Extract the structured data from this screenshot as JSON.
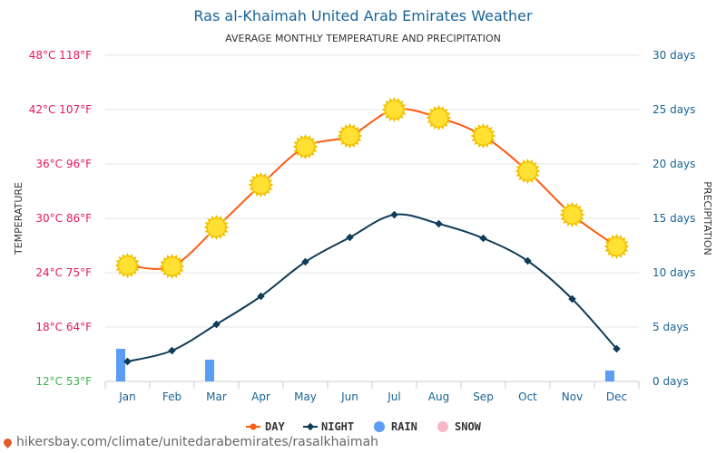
{
  "header": {
    "title": "Ras al-Khaimah United Arab Emirates Weather",
    "subtitle": "AVERAGE MONTHLY TEMPERATURE AND PRECIPITATION"
  },
  "axes": {
    "left_title": "TEMPERATURE",
    "right_title": "PRECIPITATION",
    "left_ticks": [
      "48°C 118°F",
      "42°C 107°F",
      "36°C 96°F",
      "30°C 86°F",
      "24°C 75°F",
      "18°C 64°F",
      "12°C 53°F"
    ],
    "right_ticks": [
      "30 days",
      "25 days",
      "20 days",
      "15 days",
      "10 days",
      "5 days",
      "0 days"
    ]
  },
  "colors": {
    "day": "#ff5a14",
    "night": "#0f3c57",
    "rain": "#5b9cf5",
    "snow": "#f8b7c5",
    "sun": "#ffe033",
    "sun_ray": "#f2c200",
    "grid": "#e6e6e6",
    "tick_top": "#e8175d",
    "tick_bottom": "#3db34a",
    "tick_right": "#1a6496"
  },
  "legend": {
    "day": "DAY",
    "night": "NIGHT",
    "rain": "RAIN",
    "snow": "SNOW"
  },
  "chart_data": {
    "type": "line",
    "title": "Ras al-Khaimah United Arab Emirates Weather",
    "subtitle": "AVERAGE MONTHLY TEMPERATURE AND PRECIPITATION",
    "categories": [
      "Jan",
      "Feb",
      "Mar",
      "Apr",
      "May",
      "Jun",
      "Jul",
      "Aug",
      "Sep",
      "Oct",
      "Nov",
      "Dec"
    ],
    "ylabel": "TEMPERATURE",
    "y2label": "PRECIPITATION",
    "ylim": [
      12,
      48
    ],
    "y2lim": [
      0,
      30
    ],
    "series": [
      {
        "name": "DAY",
        "axis": "temperature",
        "values": [
          24.8,
          24.7,
          29.0,
          33.7,
          37.9,
          39.1,
          42.0,
          41.1,
          39.1,
          35.2,
          30.4,
          26.9
        ]
      },
      {
        "name": "NIGHT",
        "axis": "temperature",
        "values": [
          14.2,
          15.4,
          18.3,
          21.4,
          25.2,
          27.9,
          30.4,
          29.4,
          27.8,
          25.3,
          21.1,
          15.6
        ]
      },
      {
        "name": "RAIN",
        "axis": "precipitation",
        "type": "bar",
        "values": [
          3,
          0,
          2,
          0,
          0,
          0,
          0,
          0,
          0,
          0,
          0,
          1
        ]
      },
      {
        "name": "SNOW",
        "axis": "precipitation",
        "type": "bar",
        "values": [
          0,
          0,
          0,
          0,
          0,
          0,
          0,
          0,
          0,
          0,
          0,
          0
        ]
      }
    ]
  },
  "footer": {
    "source": "hikersbay.com/climate/unitedarabemirates/rasalkhaimah"
  }
}
